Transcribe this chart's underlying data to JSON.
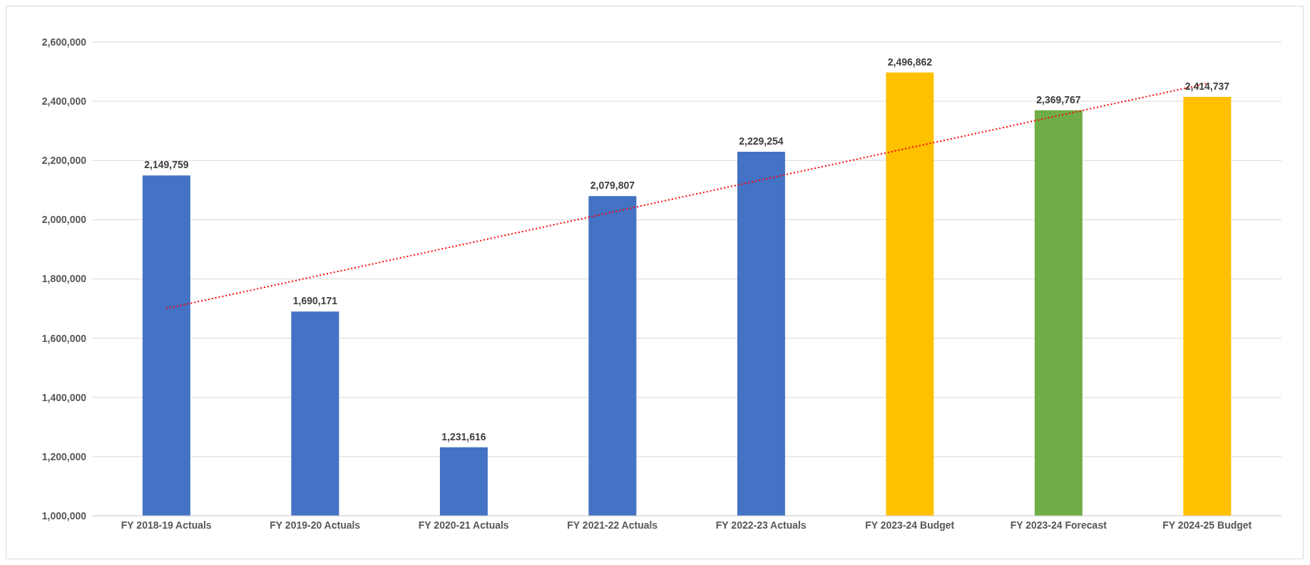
{
  "chart_data": {
    "type": "bar",
    "categories": [
      "FY 2018-19 Actuals",
      "FY 2019-20 Actuals",
      "FY 2020-21 Actuals",
      "FY 2021-22 Actuals",
      "FY 2022-23 Actuals",
      "FY 2023-24 Budget",
      "FY 2023-24 Forecast",
      "FY 2024-25 Budget"
    ],
    "series": [
      {
        "values": [
          2149759,
          1690171,
          1231616,
          2079807,
          2229254,
          2496862,
          2369767,
          2414737
        ],
        "value_labels": [
          "2,149,759",
          "1,690,171",
          "1,231,616",
          "2,079,807",
          "2,229,254",
          "2,496,862",
          "2,369,767",
          "2,414,737"
        ],
        "colors": [
          "#4472c4",
          "#4472c4",
          "#4472c4",
          "#4472c4",
          "#4472c4",
          "#ffc000",
          "#70ad47",
          "#ffc000"
        ]
      },
      {
        "type": "line",
        "x": [
          "FY 2018-19 Actuals",
          "FY 2024-25 Budget"
        ],
        "values": [
          1700000,
          2460000
        ],
        "color": "#ff0000",
        "line_style": "dotted"
      }
    ],
    "ylim": [
      1000000,
      2600000
    ],
    "yticks": [
      {
        "value": 1000000,
        "label": "1,000,000"
      },
      {
        "value": 1200000,
        "label": "1,200,000"
      },
      {
        "value": 1400000,
        "label": "1,400,000"
      },
      {
        "value": 1600000,
        "label": "1,600,000"
      },
      {
        "value": 1800000,
        "label": "1,800,000"
      },
      {
        "value": 2000000,
        "label": "2,000,000"
      },
      {
        "value": 2200000,
        "label": "2,200,000"
      },
      {
        "value": 2400000,
        "label": "2,400,000"
      },
      {
        "value": 2600000,
        "label": "2,600,000"
      }
    ],
    "grid": "y"
  }
}
